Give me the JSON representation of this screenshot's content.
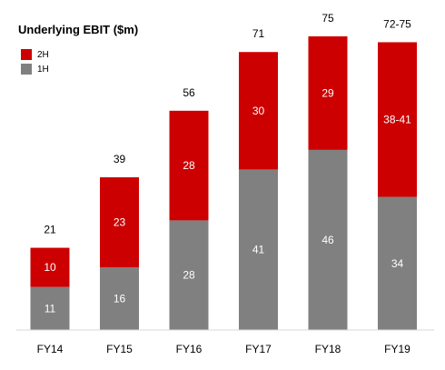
{
  "chart_data": {
    "type": "bar",
    "stacked": true,
    "title": "Underlying EBIT ($m)",
    "categories": [
      "FY14",
      "FY15",
      "FY16",
      "FY17",
      "FY18",
      "FY19"
    ],
    "series": [
      {
        "name": "1H",
        "color": "#808080",
        "values": [
          11,
          16,
          28,
          41,
          46,
          34
        ],
        "labels": [
          "11",
          "16",
          "28",
          "41",
          "46",
          "34"
        ]
      },
      {
        "name": "2H",
        "color": "#cc0000",
        "values": [
          10,
          23,
          28,
          30,
          29,
          39.5
        ],
        "labels": [
          "10",
          "23",
          "28",
          "30",
          "29",
          "38-41"
        ]
      }
    ],
    "totals": [
      "21",
      "39",
      "56",
      "71",
      "75",
      "72-75"
    ],
    "ylim": [
      0,
      80
    ],
    "grid": false,
    "legend_position": "top-left",
    "xlabel": "",
    "ylabel": ""
  }
}
